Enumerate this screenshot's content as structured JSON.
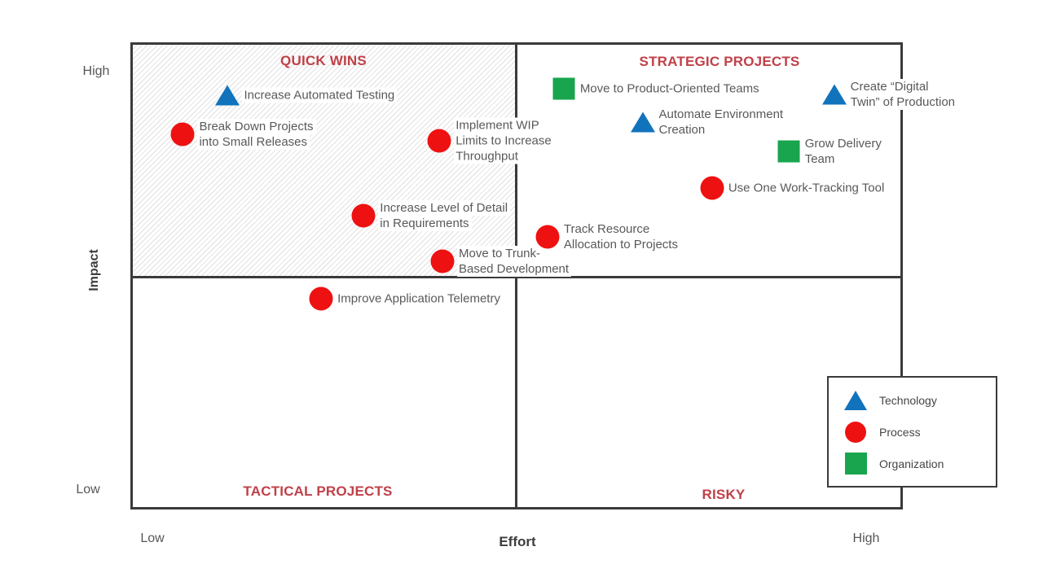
{
  "axes": {
    "y_axis_label": "Impact",
    "y_high_label": "High",
    "y_low_label": "Low",
    "x_axis_label": "Effort",
    "x_low_label": "Low",
    "x_high_label": "High"
  },
  "quadrants": {
    "top_left": "QUICK WINS",
    "top_right": "STRATEGIC PROJECTS",
    "bottom_left": "TACTICAL PROJECTS",
    "bottom_right": "RISKY",
    "highlighted_quadrant": "QUICK WINS"
  },
  "legend": {
    "items": [
      {
        "category": "technology",
        "shape": "triangle",
        "label": "Technology"
      },
      {
        "category": "process",
        "shape": "circle",
        "label": "Process"
      },
      {
        "category": "organization",
        "shape": "square",
        "label": "Organization"
      }
    ]
  },
  "colors": {
    "technology": "#1273bd",
    "process": "#ee1111",
    "organization": "#18a54e",
    "quadrant_title": "#c04048",
    "label_text": "#595959",
    "frame": "#3a3a3a"
  },
  "chart_data": {
    "type": "scatter",
    "title": "",
    "xlabel": "Effort",
    "ylabel": "Impact",
    "x_range_labels": [
      "Low",
      "High"
    ],
    "y_range_labels": [
      "Low",
      "High"
    ],
    "legend_entries": [
      "Technology",
      "Process",
      "Organization"
    ],
    "grid": false,
    "axis_scale": "0-100 (relative, unlabeled)",
    "points": [
      {
        "label": "Increase Automated Testing",
        "label_lines": [
          "Increase Automated Testing"
        ],
        "category": "technology",
        "quadrant": "QUICK WINS",
        "effort": 12.6,
        "impact": 88.7
      },
      {
        "label": "Break Down Projects into Small Releases",
        "label_lines": [
          "Break Down Projects",
          "into Small Releases"
        ],
        "category": "process",
        "quadrant": "QUICK WINS",
        "effort": 6.8,
        "impact": 80.3
      },
      {
        "label": "Implement WIP Limits to Increase Throughput",
        "label_lines": [
          "Implement WIP",
          "Limits to Increase",
          "Throughput"
        ],
        "category": "process",
        "quadrant": "QUICK WINS",
        "effort": 40.0,
        "impact": 78.9
      },
      {
        "label": "Increase Level of Detail in Requirements",
        "label_lines": [
          "Increase Level of Detail",
          "in Requirements"
        ],
        "category": "process",
        "quadrant": "QUICK WINS",
        "effort": 30.2,
        "impact": 62.9
      },
      {
        "label": "Move to Trunk-Based Development",
        "label_lines": [
          "Move to Trunk-",
          "Based Development"
        ],
        "category": "process",
        "quadrant": "QUICK WINS",
        "effort": 40.4,
        "impact": 53.1
      },
      {
        "label": "Improve Application Telemetry",
        "label_lines": [
          "Improve Application Telemetry"
        ],
        "category": "process",
        "quadrant": "TACTICAL PROJECTS",
        "effort": 24.7,
        "impact": 45.1
      },
      {
        "label": "Move to Product-Oriented Teams",
        "label_lines": [
          "Move to Product-Oriented Teams"
        ],
        "category": "organization",
        "quadrant": "STRATEGIC PROJECTS",
        "effort": 56.1,
        "impact": 90.1
      },
      {
        "label": "Automate Environment Creation",
        "label_lines": [
          "Automate Environment",
          "Creation"
        ],
        "category": "technology",
        "quadrant": "STRATEGIC PROJECTS",
        "effort": 66.3,
        "impact": 82.9
      },
      {
        "label": "Create “Digital Twin” of Production",
        "label_lines": [
          "Create “Digital",
          "Twin” of Production"
        ],
        "category": "technology",
        "quadrant": "STRATEGIC PROJECTS",
        "effort": 91.1,
        "impact": 88.9
      },
      {
        "label": "Grow Delivery Team",
        "label_lines": [
          "Grow Delivery",
          "Team"
        ],
        "category": "organization",
        "quadrant": "STRATEGIC PROJECTS",
        "effort": 85.2,
        "impact": 76.6
      },
      {
        "label": "Use One Work-Tracking Tool",
        "label_lines": [
          "Use One Work-Tracking Tool"
        ],
        "category": "process",
        "quadrant": "STRATEGIC PROJECTS",
        "effort": 75.3,
        "impact": 68.9
      },
      {
        "label": "Track Resource Allocation to Projects",
        "label_lines": [
          "Track Resource",
          "Allocation to Projects"
        ],
        "category": "process",
        "quadrant": "STRATEGIC PROJECTS",
        "effort": 54.0,
        "impact": 58.4
      }
    ]
  }
}
